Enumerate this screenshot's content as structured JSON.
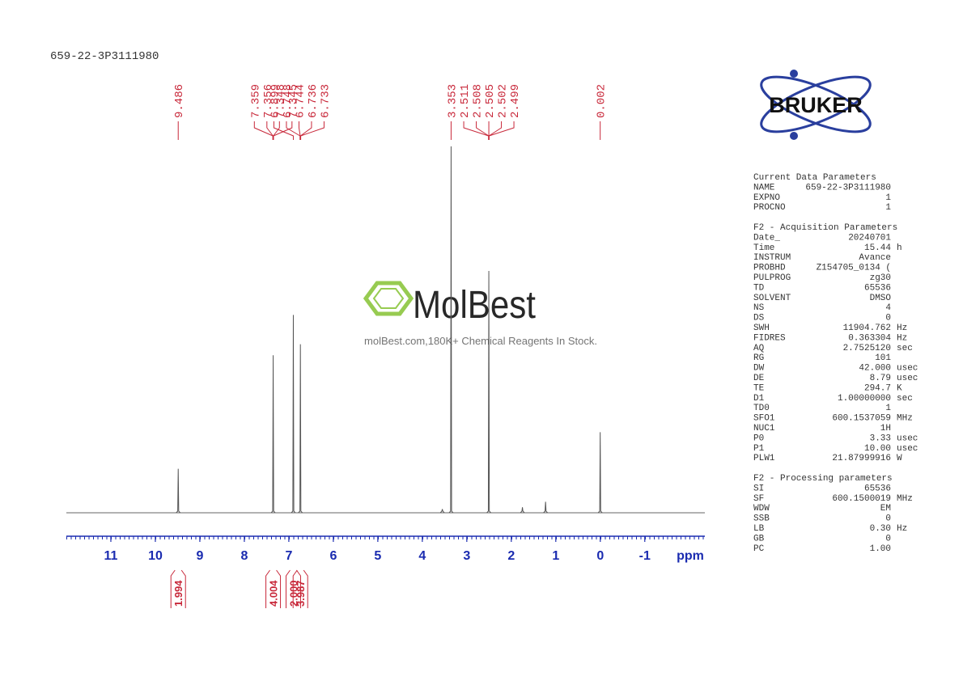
{
  "chart_data": {
    "type": "nmr",
    "title": "659-22-3P3111980",
    "x_label": "ppm",
    "xlim": [
      12.0,
      -2.35
    ],
    "xticks": [
      11,
      10,
      9,
      8,
      7,
      6,
      5,
      4,
      3,
      2,
      1,
      0,
      -1
    ],
    "ylim": [
      0,
      100
    ],
    "color": "#555555",
    "peaks": {
      "x": [
        9.486,
        7.352,
        6.899,
        6.74,
        3.55,
        3.353,
        2.505,
        1.75,
        1.23,
        0.002
      ],
      "intensity": [
        12,
        43,
        54,
        46,
        1,
        100,
        66,
        1.5,
        3,
        22
      ]
    },
    "peak_labels": [
      9.486,
      7.359,
      7.356,
      7.348,
      7.345,
      6.899,
      6.748,
      6.744,
      6.736,
      6.733,
      3.353,
      2.511,
      2.508,
      2.505,
      2.502,
      2.499,
      0.002
    ],
    "integrals": {
      "x": [
        9.486,
        7.352,
        6.899,
        6.74
      ],
      "values": [
        1.994,
        4.004,
        2,
        3.987
      ],
      "value_labels": [
        "1.994",
        "4.004",
        "2.000",
        "3.987"
      ]
    }
  },
  "watermark": {
    "brand": "MolBest",
    "tagline": "molBest.com,180K+ Chemical Reagents In Stock."
  },
  "logo": "BRUKER",
  "parameters": [
    {
      "title": "Current Data Parameters",
      "rows": [
        [
          "NAME",
          "659-22-3P3111980"
        ],
        [
          "EXPNO",
          "1"
        ],
        [
          "PROCNO",
          "1"
        ]
      ]
    },
    {
      "title": "F2 - Acquisition Parameters",
      "rows": [
        [
          "Date_",
          "20240701"
        ],
        [
          "Time",
          "15.44",
          "h"
        ],
        [
          "INSTRUM",
          "Avance"
        ],
        [
          "PROBHD",
          "Z154705_0134 ("
        ],
        [
          "PULPROG",
          "zg30"
        ],
        [
          "TD",
          "65536"
        ],
        [
          "SOLVENT",
          "DMSO"
        ],
        [
          "NS",
          "4"
        ],
        [
          "DS",
          "0"
        ],
        [
          "SWH",
          "11904.762",
          "Hz"
        ],
        [
          "FIDRES",
          "0.363304",
          "Hz"
        ],
        [
          "AQ",
          "2.7525120",
          "sec"
        ],
        [
          "RG",
          "101"
        ],
        [
          "DW",
          "42.000",
          "usec"
        ],
        [
          "DE",
          "8.79",
          "usec"
        ],
        [
          "TE",
          "294.7",
          "K"
        ],
        [
          "D1",
          "1.00000000",
          "sec"
        ],
        [
          "TD0",
          "1"
        ],
        [
          "SFO1",
          "600.1537059",
          "MHz"
        ],
        [
          "NUC1",
          "1H"
        ],
        [
          "P0",
          "3.33",
          "usec"
        ],
        [
          "P1",
          "10.00",
          "usec"
        ],
        [
          "PLW1",
          "21.87999916",
          "W"
        ]
      ]
    },
    {
      "title": "F2 - Processing parameters",
      "rows": [
        [
          "SI",
          "65536"
        ],
        [
          "SF",
          "600.1500019",
          "MHz"
        ],
        [
          "WDW",
          "EM"
        ],
        [
          "SSB",
          "0"
        ],
        [
          "LB",
          "0.30",
          "Hz"
        ],
        [
          "GB",
          "0"
        ],
        [
          "PC",
          "1.00"
        ]
      ]
    }
  ]
}
